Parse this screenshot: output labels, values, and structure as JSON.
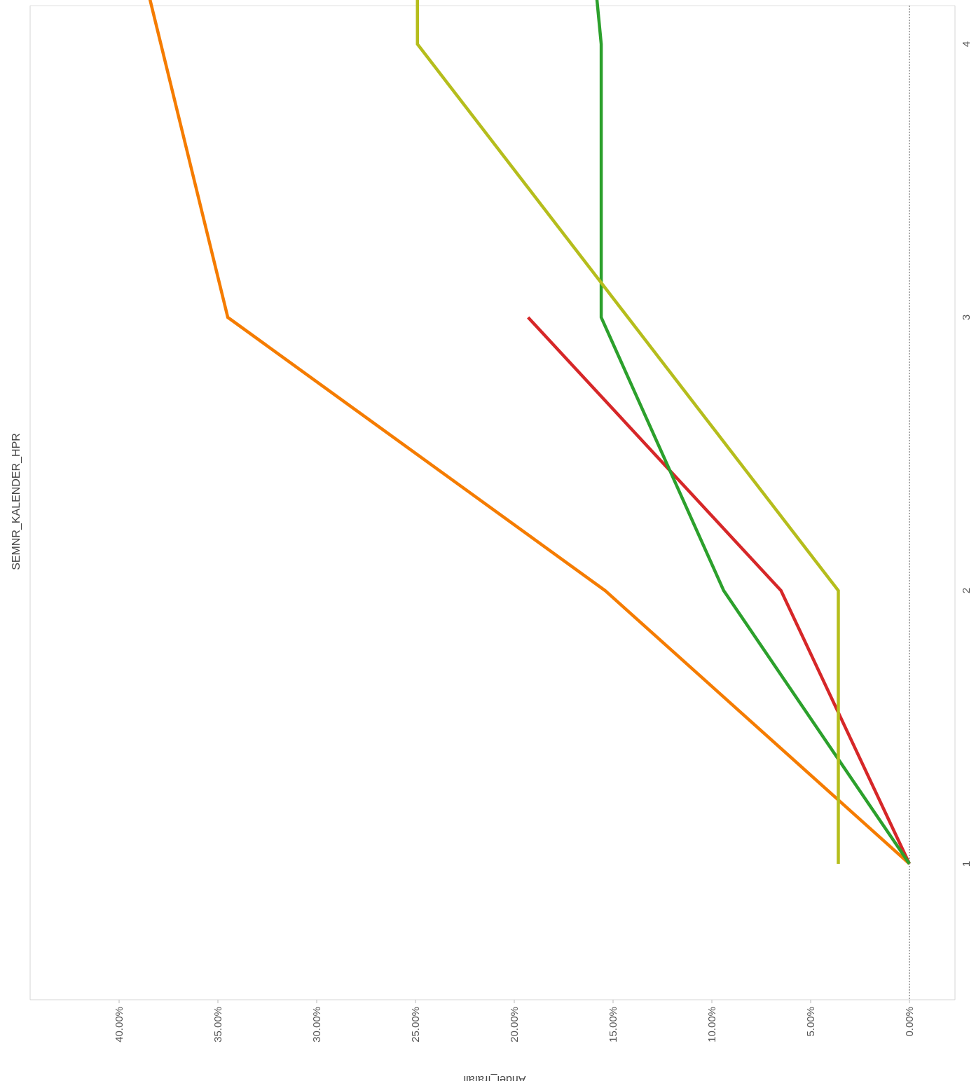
{
  "chart_data": {
    "type": "line",
    "orientation": "rotated-90-clockwise",
    "title": "",
    "xlabel": "SEMNR_KALENDER_HPR",
    "ylabel": "Andel_frafall",
    "x_ticks": [
      "1",
      "2",
      "3",
      "4"
    ],
    "y_ticks": [
      "0.00%",
      "5.00%",
      "10.00%",
      "15.00%",
      "20.00%",
      "25.00%",
      "30.00%",
      "35.00%",
      "40.00%"
    ],
    "xlim": [
      0.25,
      4.3
    ],
    "ylim": [
      0,
      0.4445
    ],
    "grid": false,
    "reference_line": {
      "y": 0,
      "style": "dotted"
    },
    "series": [
      {
        "color": "#f57c00",
        "points": [
          [
            1,
            0.0
          ],
          [
            2,
            0.154
          ],
          [
            3,
            0.345
          ],
          [
            4.3,
            0.389
          ]
        ]
      },
      {
        "color": "#d62728",
        "points": [
          [
            1,
            0.0
          ],
          [
            2,
            0.065
          ],
          [
            3,
            0.193
          ]
        ]
      },
      {
        "color": "#2ca02c",
        "points": [
          [
            1,
            0.0
          ],
          [
            2,
            0.094
          ],
          [
            3,
            0.156
          ],
          [
            4,
            0.156
          ],
          [
            4.3,
            0.16
          ]
        ]
      },
      {
        "color": "#b5bd1c",
        "points": [
          [
            1,
            0.036
          ],
          [
            2,
            0.036
          ],
          [
            4,
            0.249
          ],
          [
            4.3,
            0.249
          ]
        ]
      }
    ]
  }
}
